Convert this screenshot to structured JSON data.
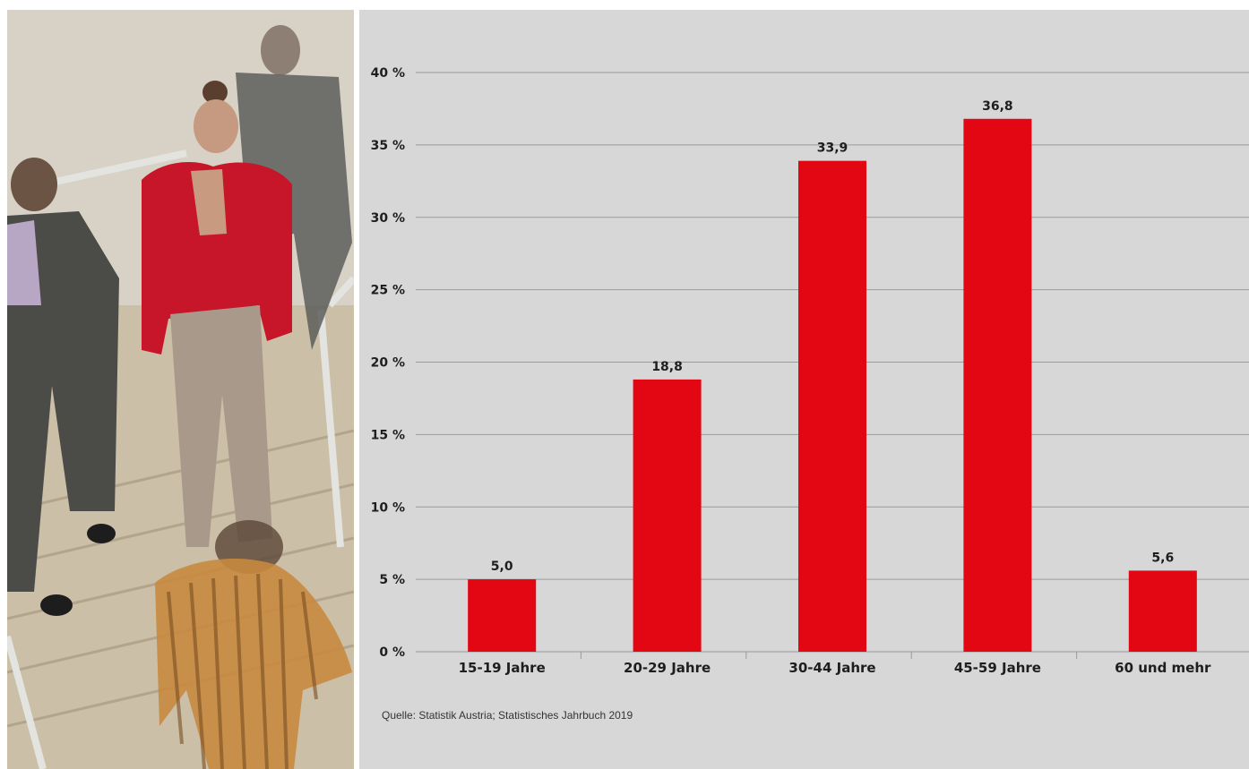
{
  "colors": {
    "bar": "#e30613",
    "panel_background": "#d7d7d7",
    "gridline": "#9a9a9a",
    "text": "#1e1e1e"
  },
  "photo": {
    "description_icon": "people-walking-stairs-photo"
  },
  "chart_data": {
    "type": "bar",
    "categories": [
      "15-19 Jahre",
      "20-29 Jahre",
      "30-44 Jahre",
      "45-59 Jahre",
      "60 und mehr"
    ],
    "values": [
      5.0,
      18.8,
      33.9,
      36.8,
      5.6
    ],
    "value_labels": [
      "5,0",
      "18,8",
      "33,9",
      "36,8",
      "5,6"
    ],
    "y_ticks": [
      0,
      5,
      10,
      15,
      20,
      25,
      30,
      35,
      40
    ],
    "y_tick_labels": [
      "0 %",
      "5 %",
      "10 %",
      "15 %",
      "20 %",
      "25 %",
      "30 %",
      "35 %",
      "40 %"
    ],
    "ylim": [
      0,
      40
    ],
    "grid": true,
    "title": "",
    "xlabel": "",
    "ylabel": ""
  },
  "source": "Quelle: Statistik Austria; Statistisches Jahrbuch 2019"
}
